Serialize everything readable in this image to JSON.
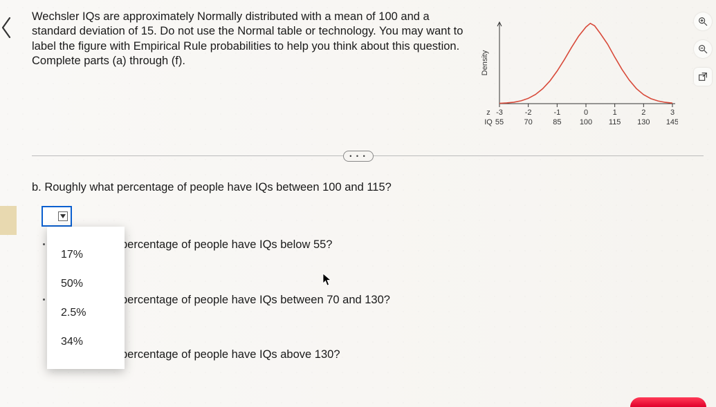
{
  "question": {
    "intro": "Wechsler IQs are approximately Normally distributed with a mean of 100 and a standard deviation of 15. Do not use the Normal table or technology. You may want to label the figure with Empirical Rule probabilities to help you think about this question. Complete parts (a) through (f).",
    "part_b": "b. Roughly what percentage of people have IQs between 100 and 115?",
    "part_c_fragment": "percentage of people have IQs below 55?",
    "part_d_fragment": "percentage of people have IQs between 70 and 130?",
    "part_e_fragment": "percentage of people have IQs above 130?"
  },
  "dropdown": {
    "options": [
      "17%",
      "50%",
      "2.5%",
      "34%"
    ]
  },
  "chart": {
    "type": "density-curve",
    "y_label": "Density",
    "z_row_label": "z",
    "iq_row_label": "IQ",
    "z_ticks": [
      "-3",
      "-2",
      "-1",
      "0",
      "1",
      "2",
      "3"
    ],
    "iq_ticks": [
      "55",
      "70",
      "85",
      "100",
      "115",
      "130",
      "145"
    ],
    "curve_color": "#d84a3a",
    "axis_color": "#333333",
    "background_color": "transparent",
    "curve_points": [
      [
        0,
        0.004
      ],
      [
        0.25,
        0.009
      ],
      [
        0.5,
        0.018
      ],
      [
        0.75,
        0.035
      ],
      [
        1,
        0.065
      ],
      [
        1.25,
        0.113
      ],
      [
        1.5,
        0.183
      ],
      [
        1.75,
        0.278
      ],
      [
        2,
        0.399
      ],
      [
        2.25,
        0.54
      ],
      [
        2.5,
        0.69
      ],
      [
        2.75,
        0.83
      ],
      [
        3,
        0.94
      ],
      [
        3.15,
        0.985
      ],
      [
        3.3,
        0.955
      ],
      [
        3.5,
        0.86
      ],
      [
        3.75,
        0.73
      ],
      [
        4,
        0.57
      ],
      [
        4.25,
        0.42
      ],
      [
        4.5,
        0.29
      ],
      [
        4.75,
        0.185
      ],
      [
        5,
        0.11
      ],
      [
        5.25,
        0.062
      ],
      [
        5.5,
        0.033
      ],
      [
        5.75,
        0.016
      ],
      [
        6,
        0.007
      ]
    ],
    "x_domain": [
      0,
      6
    ],
    "y_domain": [
      0,
      1
    ]
  },
  "colors": {
    "dropdown_border": "#0a5fcf",
    "divider": "#bbbbbb",
    "bottom_pill_top": "#ff3b57",
    "bottom_pill_bottom": "#e1002a",
    "side_mark": "#e8d9b0"
  }
}
